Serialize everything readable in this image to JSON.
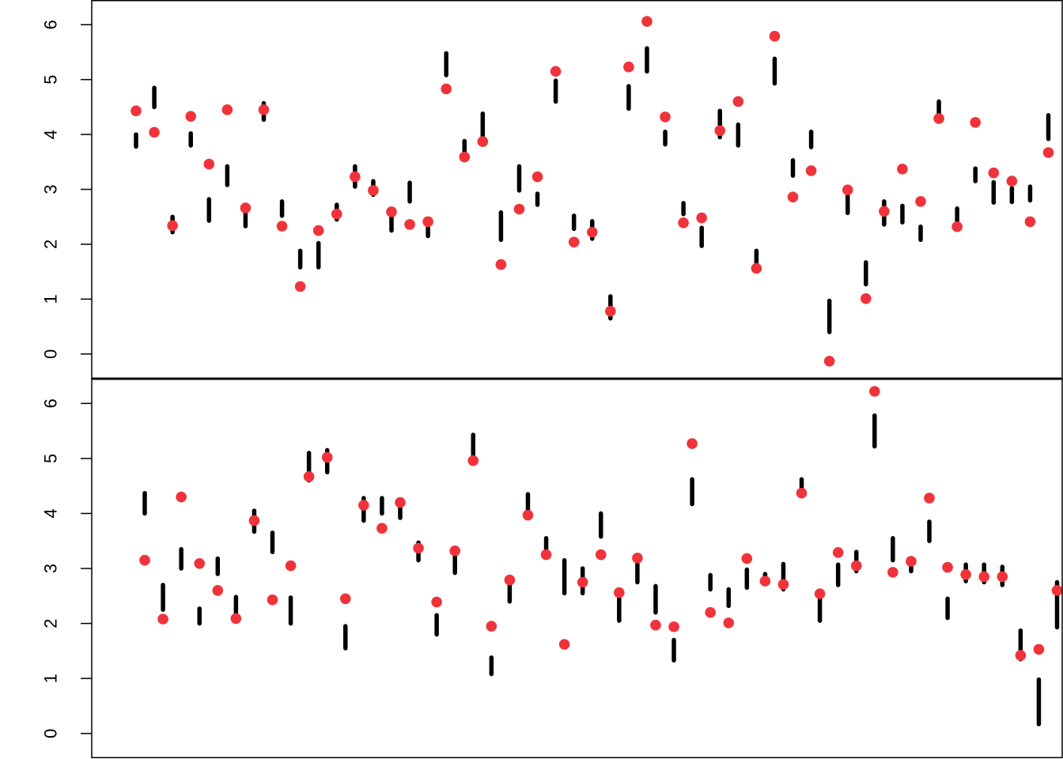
{
  "chart_data": [
    {
      "type": "scatter",
      "panel": "top",
      "ylim": [
        -0.45,
        6.45
      ],
      "yticks": [
        "0",
        "1",
        "2",
        "3",
        "4",
        "5",
        "6"
      ],
      "grid": false,
      "legend": "none",
      "colors": {
        "interval": "#000000",
        "point": "#f0333a"
      },
      "intervals": [
        [
          3.78,
          4.0
        ],
        [
          4.5,
          4.85
        ],
        [
          2.22,
          2.5
        ],
        [
          3.8,
          4.02
        ],
        [
          2.43,
          2.82
        ],
        [
          3.08,
          3.42
        ],
        [
          2.33,
          2.72
        ],
        [
          4.27,
          4.57
        ],
        [
          2.52,
          2.78
        ],
        [
          1.58,
          1.88
        ],
        [
          1.58,
          2.02
        ],
        [
          2.45,
          2.72
        ],
        [
          3.05,
          3.42
        ],
        [
          2.9,
          3.15
        ],
        [
          2.25,
          2.62
        ],
        [
          2.78,
          3.12
        ],
        [
          2.15,
          2.45
        ],
        [
          5.08,
          5.48
        ],
        [
          3.55,
          3.88
        ],
        [
          3.88,
          4.38
        ],
        [
          2.08,
          2.58
        ],
        [
          2.98,
          3.42
        ],
        [
          2.72,
          2.92
        ],
        [
          4.6,
          4.98
        ],
        [
          2.28,
          2.52
        ],
        [
          2.1,
          2.42
        ],
        [
          0.65,
          1.05
        ],
        [
          4.47,
          4.88
        ],
        [
          5.15,
          5.57
        ],
        [
          3.82,
          4.05
        ],
        [
          2.55,
          2.75
        ],
        [
          1.97,
          2.3
        ],
        [
          3.95,
          4.43
        ],
        [
          3.8,
          4.18
        ],
        [
          1.6,
          1.88
        ],
        [
          4.93,
          5.38
        ],
        [
          3.25,
          3.53
        ],
        [
          3.77,
          4.05
        ],
        [
          0.4,
          0.97
        ],
        [
          2.57,
          2.95
        ],
        [
          1.27,
          1.67
        ],
        [
          2.36,
          2.78
        ],
        [
          2.4,
          2.7
        ],
        [
          2.08,
          2.32
        ],
        [
          4.35,
          4.6
        ],
        [
          2.3,
          2.65
        ],
        [
          3.15,
          3.38
        ],
        [
          2.76,
          3.13
        ],
        [
          2.77,
          3.02
        ],
        [
          2.8,
          3.05
        ],
        [
          3.92,
          4.35
        ]
      ],
      "points": [
        4.43,
        4.04,
        2.34,
        4.33,
        3.46,
        4.45,
        2.66,
        4.45,
        2.33,
        1.23,
        2.25,
        2.55,
        3.23,
        2.98,
        2.59,
        2.36,
        2.41,
        4.83,
        3.59,
        3.87,
        1.63,
        2.64,
        3.23,
        5.15,
        2.04,
        2.22,
        0.78,
        5.23,
        6.06,
        4.32,
        2.39,
        2.48,
        4.07,
        4.6,
        1.56,
        5.79,
        2.86,
        3.34,
        -0.13,
        2.99,
        1.01,
        2.6,
        3.37,
        2.78,
        4.29,
        2.32,
        4.22,
        3.3,
        3.15,
        2.41,
        3.67
      ]
    },
    {
      "type": "scatter",
      "panel": "bottom",
      "ylim": [
        -0.45,
        6.45
      ],
      "yticks": [
        "0",
        "1",
        "2",
        "3",
        "4",
        "5",
        "6"
      ],
      "grid": false,
      "legend": "none",
      "colors": {
        "interval": "#000000",
        "point": "#f0333a"
      },
      "intervals": [
        [
          4.0,
          4.37
        ],
        [
          2.25,
          2.7
        ],
        [
          3.0,
          3.35
        ],
        [
          2.0,
          2.27
        ],
        [
          2.9,
          3.18
        ],
        [
          2.08,
          2.48
        ],
        [
          3.67,
          4.05
        ],
        [
          3.3,
          3.65
        ],
        [
          2.0,
          2.47
        ],
        [
          4.6,
          5.1
        ],
        [
          4.75,
          5.15
        ],
        [
          1.55,
          1.95
        ],
        [
          3.87,
          4.28
        ],
        [
          4.0,
          4.28
        ],
        [
          3.92,
          4.25
        ],
        [
          3.15,
          3.47
        ],
        [
          1.8,
          2.15
        ],
        [
          2.92,
          3.3
        ],
        [
          5.02,
          5.43
        ],
        [
          1.08,
          1.38
        ],
        [
          2.4,
          2.75
        ],
        [
          3.95,
          4.35
        ],
        [
          3.2,
          3.55
        ],
        [
          2.55,
          3.15
        ],
        [
          2.55,
          3.0
        ],
        [
          3.58,
          4.0
        ],
        [
          2.05,
          2.47
        ],
        [
          2.75,
          3.08
        ],
        [
          2.2,
          2.68
        ],
        [
          1.33,
          1.7
        ],
        [
          4.17,
          4.62
        ],
        [
          2.62,
          2.88
        ],
        [
          2.32,
          2.62
        ],
        [
          2.65,
          2.98
        ],
        [
          2.75,
          2.9
        ],
        [
          2.62,
          3.08
        ],
        [
          4.33,
          4.62
        ],
        [
          2.05,
          2.47
        ],
        [
          2.7,
          3.07
        ],
        [
          2.95,
          3.3
        ],
        [
          5.22,
          5.78
        ],
        [
          3.15,
          3.55
        ],
        [
          2.95,
          3.15
        ],
        [
          3.5,
          3.85
        ],
        [
          2.1,
          2.45
        ],
        [
          2.77,
          3.07
        ],
        [
          2.75,
          3.07
        ],
        [
          2.7,
          3.03
        ],
        [
          1.35,
          1.87
        ],
        [
          0.17,
          0.98
        ],
        [
          1.93,
          2.75
        ]
      ],
      "points": [
        3.15,
        2.08,
        4.3,
        3.09,
        2.6,
        2.09,
        3.87,
        2.43,
        3.05,
        4.67,
        5.02,
        2.45,
        4.15,
        3.73,
        4.2,
        3.37,
        2.39,
        3.32,
        4.96,
        1.95,
        2.79,
        3.97,
        3.25,
        1.62,
        2.75,
        3.25,
        2.56,
        3.19,
        1.97,
        1.94,
        5.27,
        2.2,
        2.01,
        3.18,
        2.77,
        2.71,
        4.37,
        2.54,
        3.29,
        3.05,
        6.22,
        2.93,
        3.13,
        4.28,
        3.02,
        2.89,
        2.85,
        2.85,
        1.42,
        1.53,
        2.6
      ]
    }
  ]
}
